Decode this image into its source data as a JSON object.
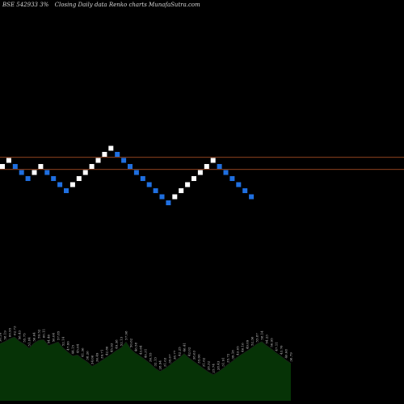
{
  "header": {
    "symbol": "BSE 542933 3%",
    "caption": "Closing Daily data  Renko  charts MunafaSutra.com"
  },
  "colors": {
    "up": "#ffffff",
    "down": "#1f6fe0",
    "hline": "#c05a2a",
    "rsi_fill": "#063306",
    "rsi_line": "#1f1f1f",
    "background": "#000000"
  },
  "chart_data": {
    "type": "renko",
    "brick_levels": [
      10,
      11,
      10,
      9,
      8,
      9,
      10,
      9,
      8,
      7,
      6,
      7,
      8,
      9,
      10,
      11,
      12,
      13,
      12,
      11,
      10,
      9,
      8,
      7,
      6,
      5,
      4,
      5,
      6,
      7,
      8,
      9,
      10,
      11,
      10,
      9,
      8,
      7,
      6,
      5
    ],
    "directions": [
      "up",
      "up",
      "down",
      "down",
      "down",
      "up",
      "up",
      "down",
      "down",
      "down",
      "down",
      "up",
      "up",
      "up",
      "up",
      "up",
      "up",
      "up",
      "down",
      "down",
      "down",
      "down",
      "down",
      "down",
      "down",
      "down",
      "down",
      "up",
      "up",
      "up",
      "up",
      "up",
      "up",
      "up",
      "down",
      "down",
      "down",
      "down",
      "down",
      "down"
    ],
    "reference_levels": [
      11.5,
      9.5
    ],
    "rsi": {
      "values": [
        56.24,
        58.19,
        60.95,
        62.73,
        58.43,
        55.75,
        51.84,
        56.64,
        59.52,
        60.11,
        54.46,
        56.04,
        57.85,
        52.14,
        47.86,
        44.15,
        45.04,
        41.36,
        38.26,
        34.06,
        36.49,
        39.71,
        42.86,
        45.93,
        49.38,
        52.13,
        57.98,
        50.62,
        46.58,
        43.64,
        40.31,
        36.55,
        32.13,
        28.94,
        31.63,
        35.07,
        38.77,
        42.25,
        46.41,
        42.02,
        38.63,
        35.06,
        31.62,
        28.32,
        25.74,
        28.43,
        31.91,
        35.72,
        39.18,
        43.05,
        46.16,
        49.09,
        52.36,
        55.87,
        58.14,
        54.23,
        50.95,
        47.11,
        43.76,
        40.08,
        36.79
      ]
    }
  }
}
